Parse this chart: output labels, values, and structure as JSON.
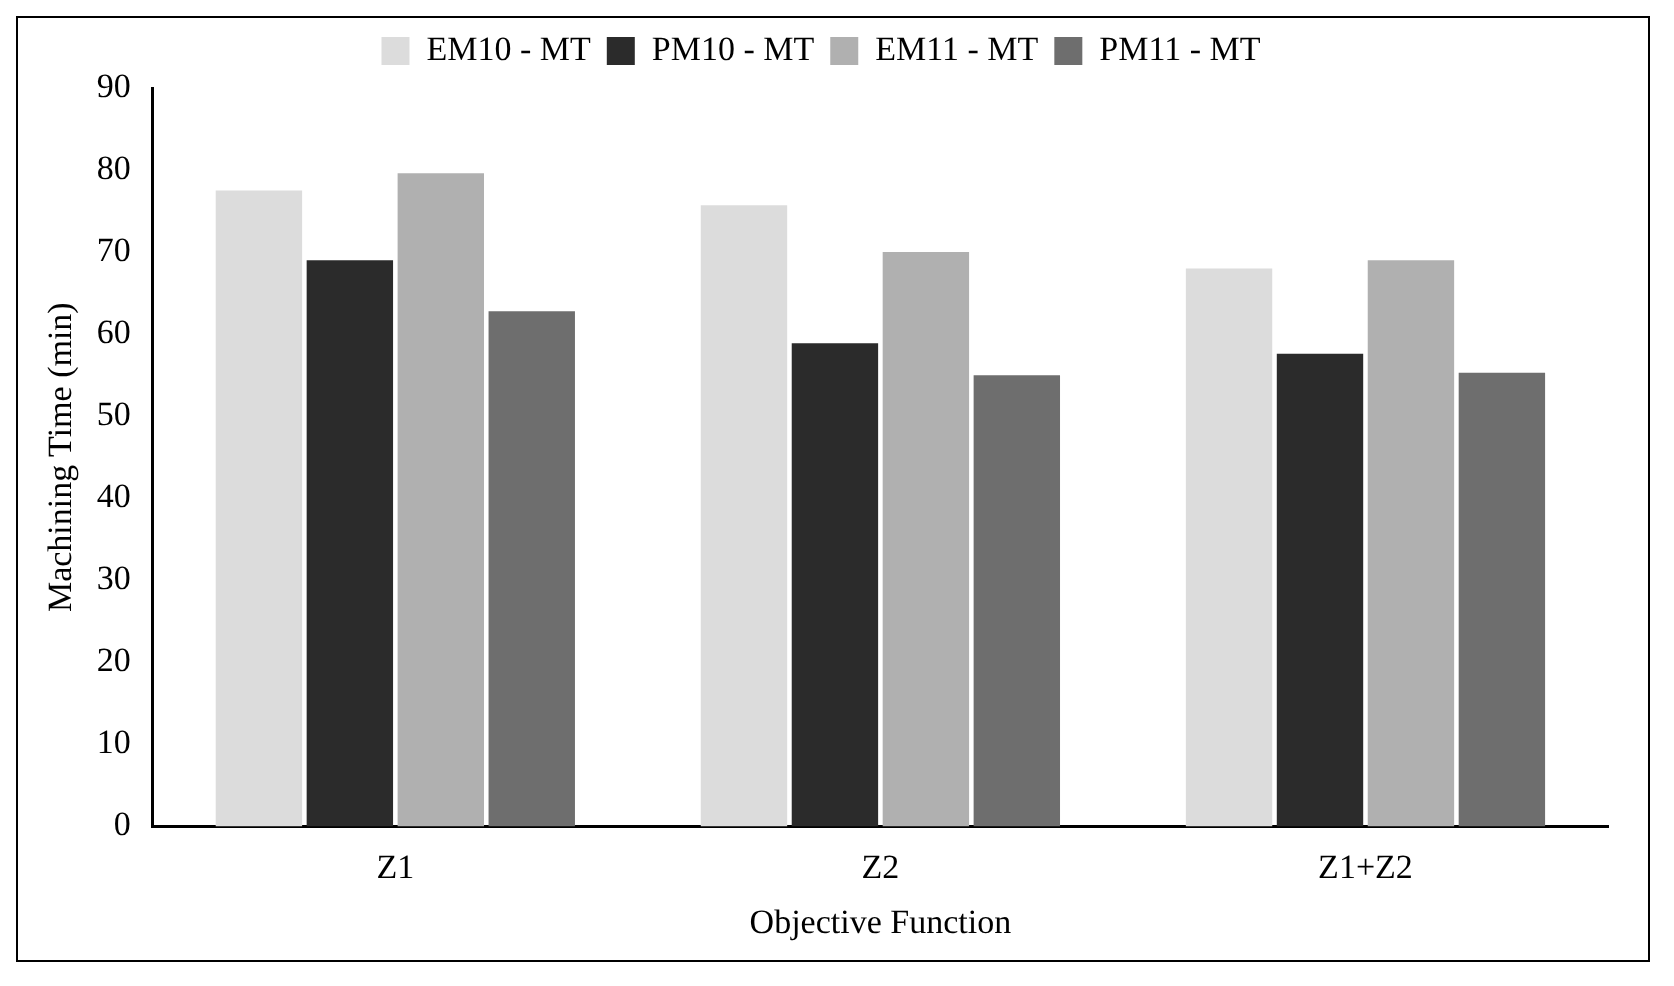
{
  "chart_data": {
    "type": "bar",
    "xlabel": "Objective Function",
    "ylabel": "Machining Time (min)",
    "categories": [
      "Z1",
      "Z2",
      "Z1+Z2"
    ],
    "series": [
      {
        "name": "EM10 - MT",
        "color": "#dcdcdc",
        "values": [
          77.5,
          75.7,
          68
        ]
      },
      {
        "name": "PM10 - MT",
        "color": "#2b2b2b",
        "values": [
          69,
          58.9,
          57.6
        ]
      },
      {
        "name": "EM11 - MT",
        "color": "#b0b0b0",
        "values": [
          79.6,
          70,
          69
        ]
      },
      {
        "name": "PM11 - MT",
        "color": "#6e6e6e",
        "values": [
          62.8,
          55,
          55.3
        ]
      }
    ],
    "ylim": [
      0,
      90
    ],
    "yticks": [
      0,
      10,
      20,
      30,
      40,
      50,
      60,
      70,
      80,
      90
    ],
    "grid": false,
    "legend": "top"
  }
}
